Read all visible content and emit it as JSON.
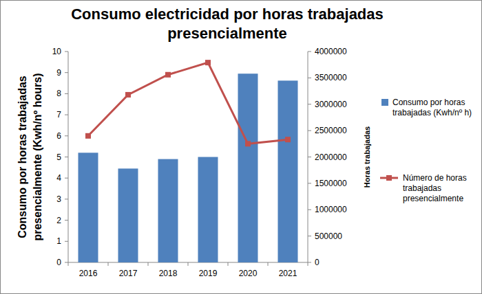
{
  "chart_data": {
    "type": "bar",
    "title": "Consumo electricidad por horas trabajadas presencialmente",
    "y_label": "Consumo por horas trabajadas presencialmente (Kwh/nº hours)",
    "y2_label": "Horas trabajadas",
    "categories": [
      "2016",
      "2017",
      "2018",
      "2019",
      "2020",
      "2021"
    ],
    "series": [
      {
        "name": "Consumo por horas trabajadas (Kwh/nº h)",
        "type": "bar",
        "color": "#4f81bd",
        "values": [
          5.2,
          4.45,
          4.9,
          5.0,
          8.95,
          8.62
        ]
      },
      {
        "name": "Número de horas trabajadas presencialmente",
        "type": "line",
        "color": "#c0504d",
        "marker": "square",
        "axis": "y2",
        "values": [
          2400000,
          3180000,
          3560000,
          3790000,
          2250000,
          2330000
        ]
      }
    ],
    "ylim": [
      0,
      10
    ],
    "yticks": [
      0,
      1,
      2,
      3,
      4,
      5,
      6,
      7,
      8,
      9,
      10
    ],
    "y2lim": [
      0,
      4000000
    ],
    "y2ticks": [
      0,
      500000,
      1000000,
      1500000,
      2000000,
      2500000,
      3000000,
      3500000,
      4000000
    ],
    "grid": false,
    "legend": "right"
  }
}
